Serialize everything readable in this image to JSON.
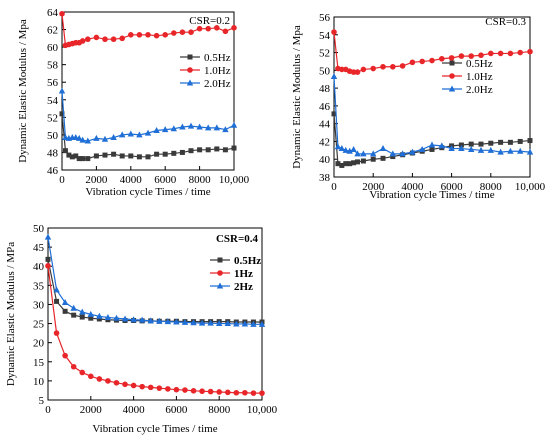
{
  "chart_data": [
    {
      "type": "line",
      "annotation": "CSR=0.2",
      "xlabel": "Vibration cycle Times / time",
      "ylabel": "Dynamic Elastic Modulus / Mpa",
      "xlim": [
        0,
        10000
      ],
      "ylim": [
        46,
        64
      ],
      "xticks": [
        0,
        2000,
        4000,
        6000,
        8000,
        10000
      ],
      "xtick_labels": [
        "0",
        "2000",
        "4000",
        "6000",
        "8000",
        "10,000"
      ],
      "yticks": [
        46,
        48,
        50,
        52,
        54,
        56,
        58,
        60,
        62,
        64
      ],
      "ytick_labels": [
        "46",
        "48",
        "50",
        "52",
        "54",
        "56",
        "58",
        "60",
        "62",
        "64"
      ],
      "legend_position": "right-middle",
      "legend_bold": false,
      "series": [
        {
          "name": "0.5Hz",
          "color": "#3a3a3a",
          "marker": "square",
          "x": [
            0,
            200,
            400,
            600,
            800,
            1000,
            1200,
            1500,
            2000,
            2500,
            3000,
            3500,
            4000,
            4500,
            5000,
            5500,
            6000,
            6500,
            7000,
            7500,
            8000,
            8500,
            9000,
            9500,
            10000
          ],
          "y": [
            52.4,
            48.2,
            47.7,
            47.5,
            47.6,
            47.3,
            47.3,
            47.3,
            47.6,
            47.7,
            47.8,
            47.6,
            47.6,
            47.5,
            47.5,
            47.8,
            47.8,
            47.9,
            48.0,
            48.2,
            48.3,
            48.3,
            48.4,
            48.3,
            48.5
          ]
        },
        {
          "name": "1.0Hz",
          "color": "#e8262a",
          "marker": "circle",
          "x": [
            0,
            200,
            400,
            600,
            800,
            1000,
            1200,
            1500,
            2000,
            2500,
            3000,
            3500,
            4000,
            4500,
            5000,
            5500,
            6000,
            6500,
            7000,
            7500,
            8000,
            8500,
            9000,
            9500,
            10000
          ],
          "y": [
            63.8,
            60.2,
            60.3,
            60.4,
            60.5,
            60.5,
            60.7,
            60.9,
            61.1,
            60.9,
            60.9,
            61.0,
            61.4,
            61.4,
            61.4,
            61.3,
            61.4,
            61.6,
            61.7,
            61.7,
            62.1,
            62.1,
            62.2,
            61.8,
            62.2
          ]
        },
        {
          "name": "2.0Hz",
          "color": "#1f6fd6",
          "marker": "triangle",
          "x": [
            0,
            200,
            400,
            600,
            800,
            1000,
            1200,
            1500,
            2000,
            2500,
            3000,
            3500,
            4000,
            4500,
            5000,
            5500,
            6000,
            6500,
            7000,
            7500,
            8000,
            8500,
            9000,
            9500,
            10000
          ],
          "y": [
            55.0,
            49.7,
            49.6,
            49.7,
            49.7,
            49.6,
            49.4,
            49.3,
            49.6,
            49.5,
            49.7,
            50.0,
            50.1,
            50.0,
            50.2,
            50.5,
            50.6,
            50.7,
            50.9,
            51.0,
            50.9,
            50.8,
            50.8,
            50.6,
            51.1
          ]
        }
      ]
    },
    {
      "type": "line",
      "annotation": "CSR=0.3",
      "xlabel": "Vibration cycle Times / time",
      "ylabel": "Dynamic Elastic Modulus / Mpa",
      "xlim": [
        0,
        10000
      ],
      "ylim": [
        38,
        56
      ],
      "xticks": [
        0,
        2000,
        4000,
        6000,
        8000,
        10000
      ],
      "xtick_labels": [
        "0",
        "2000",
        "4000",
        "6000",
        "8000",
        "10,000"
      ],
      "yticks": [
        38,
        40,
        42,
        44,
        46,
        48,
        50,
        52,
        54,
        56
      ],
      "ytick_labels": [
        "38",
        "40",
        "42",
        "44",
        "46",
        "48",
        "50",
        "52",
        "54",
        "56"
      ],
      "legend_position": "right-middle",
      "legend_bold": false,
      "series": [
        {
          "name": "0.5Hz",
          "color": "#3a3a3a",
          "marker": "square",
          "x": [
            0,
            200,
            400,
            600,
            800,
            1000,
            1200,
            1500,
            2000,
            2500,
            3000,
            3500,
            4000,
            4500,
            5000,
            5500,
            6000,
            6500,
            7000,
            7500,
            8000,
            8500,
            9000,
            9500,
            10000
          ],
          "y": [
            45.1,
            39.5,
            39.3,
            39.5,
            39.5,
            39.6,
            39.7,
            39.8,
            40.0,
            40.1,
            40.3,
            40.5,
            40.7,
            40.9,
            41.1,
            41.3,
            41.5,
            41.6,
            41.7,
            41.7,
            41.8,
            41.9,
            41.9,
            42.0,
            42.1
          ]
        },
        {
          "name": "1.0Hz",
          "color": "#e8262a",
          "marker": "circle",
          "x": [
            0,
            200,
            400,
            600,
            800,
            1000,
            1200,
            1500,
            2000,
            2500,
            3000,
            3500,
            4000,
            4500,
            5000,
            5500,
            6000,
            6500,
            7000,
            7500,
            8000,
            8500,
            9000,
            9500,
            10000
          ],
          "y": [
            54.3,
            50.2,
            50.1,
            50.1,
            49.9,
            49.8,
            49.8,
            50.1,
            50.2,
            50.4,
            50.4,
            50.5,
            50.9,
            51.0,
            51.1,
            51.3,
            51.4,
            51.6,
            51.6,
            51.7,
            51.9,
            51.9,
            51.9,
            52.0,
            52.1
          ]
        },
        {
          "name": "2.0Hz",
          "color": "#1f6fd6",
          "marker": "triangle",
          "x": [
            0,
            200,
            400,
            600,
            800,
            1000,
            1200,
            1500,
            2000,
            2500,
            3000,
            3500,
            4000,
            4500,
            5000,
            5500,
            6000,
            6500,
            7000,
            7500,
            8000,
            8500,
            9000,
            9500,
            10000
          ],
          "y": [
            49.3,
            41.4,
            41.2,
            41.0,
            40.9,
            41.1,
            40.6,
            40.6,
            40.6,
            41.2,
            40.6,
            40.6,
            40.8,
            41.1,
            41.6,
            41.5,
            41.2,
            41.2,
            41.1,
            41.0,
            41.0,
            40.8,
            40.9,
            40.9,
            40.8
          ]
        }
      ]
    },
    {
      "type": "line",
      "annotation": "CSR=0.4",
      "xlabel": "Vibration cycle Times / time",
      "ylabel": "Dynamic Elastic Modulus / MPa",
      "xlim": [
        0,
        10000
      ],
      "ylim": [
        5,
        50
      ],
      "xticks": [
        0,
        2000,
        4000,
        6000,
        8000,
        10000
      ],
      "xtick_labels": [
        "0",
        "2000",
        "4000",
        "6000",
        "8000",
        "10,000"
      ],
      "yticks": [
        5,
        10,
        15,
        20,
        25,
        30,
        35,
        40,
        45,
        50
      ],
      "ytick_labels": [
        "5",
        "10",
        "15",
        "20",
        "25",
        "30",
        "35",
        "40",
        "45",
        "50"
      ],
      "legend_position": "right-top",
      "legend_bold": true,
      "series": [
        {
          "name": "0.5Hz",
          "color": "#3a3a3a",
          "marker": "square",
          "x": [
            0,
            400,
            800,
            1200,
            1600,
            2000,
            2400,
            2800,
            3200,
            3600,
            4000,
            4400,
            4800,
            5200,
            5600,
            6000,
            6400,
            6800,
            7200,
            7600,
            8000,
            8400,
            8800,
            9200,
            9600,
            10000
          ],
          "y": [
            41.8,
            30.8,
            28.2,
            27.2,
            26.7,
            26.4,
            26.2,
            26.0,
            25.9,
            25.8,
            25.8,
            25.7,
            25.7,
            25.6,
            25.6,
            25.6,
            25.5,
            25.5,
            25.5,
            25.5,
            25.5,
            25.5,
            25.4,
            25.4,
            25.4,
            25.4
          ]
        },
        {
          "name": "1Hz",
          "color": "#e8262a",
          "marker": "circle",
          "x": [
            0,
            400,
            800,
            1200,
            1600,
            2000,
            2400,
            2800,
            3200,
            3600,
            4000,
            4400,
            4800,
            5200,
            5600,
            6000,
            6400,
            6800,
            7200,
            7600,
            8000,
            8400,
            8800,
            9200,
            9600,
            10000
          ],
          "y": [
            40.1,
            22.5,
            16.6,
            13.7,
            12.2,
            11.2,
            10.5,
            10.0,
            9.5,
            9.1,
            8.8,
            8.5,
            8.3,
            8.1,
            7.9,
            7.7,
            7.6,
            7.4,
            7.3,
            7.2,
            7.1,
            7.0,
            6.9,
            6.9,
            6.8,
            6.8
          ]
        },
        {
          "name": "2Hz",
          "color": "#1f6fd6",
          "marker": "triangle",
          "x": [
            0,
            400,
            800,
            1200,
            1600,
            2000,
            2400,
            2800,
            3200,
            3600,
            4000,
            4400,
            4800,
            5200,
            5600,
            6000,
            6400,
            6800,
            7200,
            7600,
            8000,
            8400,
            8800,
            9200,
            9600,
            10000
          ],
          "y": [
            47.6,
            33.8,
            30.5,
            29.0,
            28.0,
            27.4,
            26.9,
            26.6,
            26.4,
            26.2,
            26.0,
            25.9,
            25.7,
            25.6,
            25.5,
            25.4,
            25.3,
            25.2,
            25.1,
            25.1,
            25.0,
            25.0,
            24.9,
            24.9,
            24.8,
            24.8
          ]
        }
      ]
    }
  ]
}
